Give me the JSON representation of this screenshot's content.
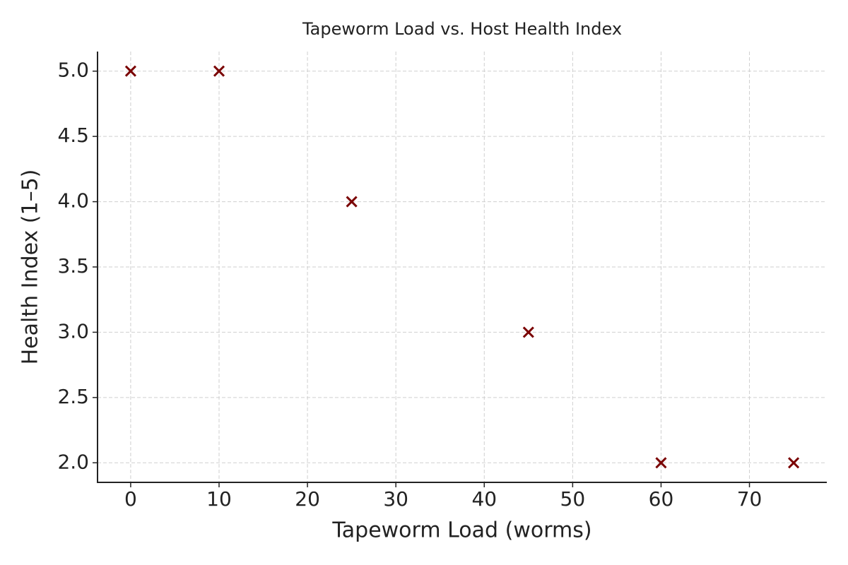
{
  "chart_data": {
    "type": "scatter",
    "title": "Tapeworm Load vs. Host Health Index",
    "x_label": "Tapeworm Load (worms)",
    "y_label": "Health Index (1–5)",
    "x": [
      0,
      10,
      25,
      45,
      60,
      75
    ],
    "values": [
      5,
      5,
      4,
      3,
      2,
      2
    ],
    "color": "#7a0000",
    "marker": "x",
    "xlim": [
      -3.75,
      78.75
    ],
    "xticks": [
      0,
      10,
      20,
      30,
      40,
      50,
      60,
      70
    ],
    "ylim": [
      1.85,
      5.15
    ],
    "yticks": [
      {
        "value": 2,
        "label": "2.0"
      },
      2.5,
      {
        "value": 3,
        "label": "3.0"
      },
      3.5,
      {
        "value": 4,
        "label": "4.0"
      },
      4.5,
      {
        "value": 5,
        "label": "5.0"
      }
    ],
    "grid": true
  }
}
